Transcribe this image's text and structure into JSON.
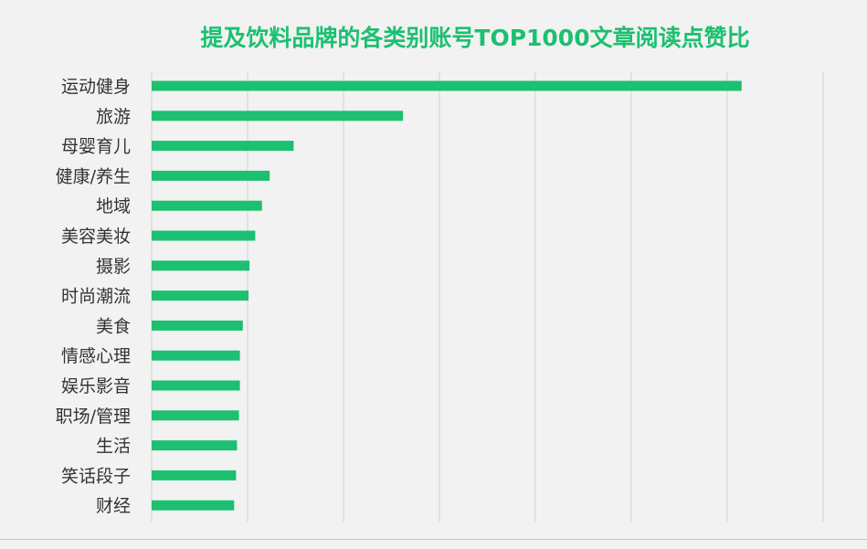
{
  "chart_data": {
    "type": "bar",
    "orientation": "horizontal",
    "title": "提及饮料品牌的各类别账号TOP1000文章阅读点赞比",
    "categories": [
      "运动健身",
      "旅游",
      "母婴育儿",
      "健康/养生",
      "地域",
      "美容美妆",
      "摄影",
      "时尚潮流",
      "美食",
      "情感心理",
      "娱乐影音",
      "职场/管理",
      "生活",
      "笑话段子",
      "财经"
    ],
    "values": [
      6.15,
      2.62,
      1.48,
      1.23,
      1.15,
      1.08,
      1.02,
      1.01,
      0.95,
      0.92,
      0.92,
      0.91,
      0.89,
      0.88,
      0.86
    ],
    "xlim": [
      0,
      7
    ],
    "grid": true,
    "bar_color": "#1cc070",
    "grid_color": "#d0d0d0",
    "label_color": "#333333"
  }
}
